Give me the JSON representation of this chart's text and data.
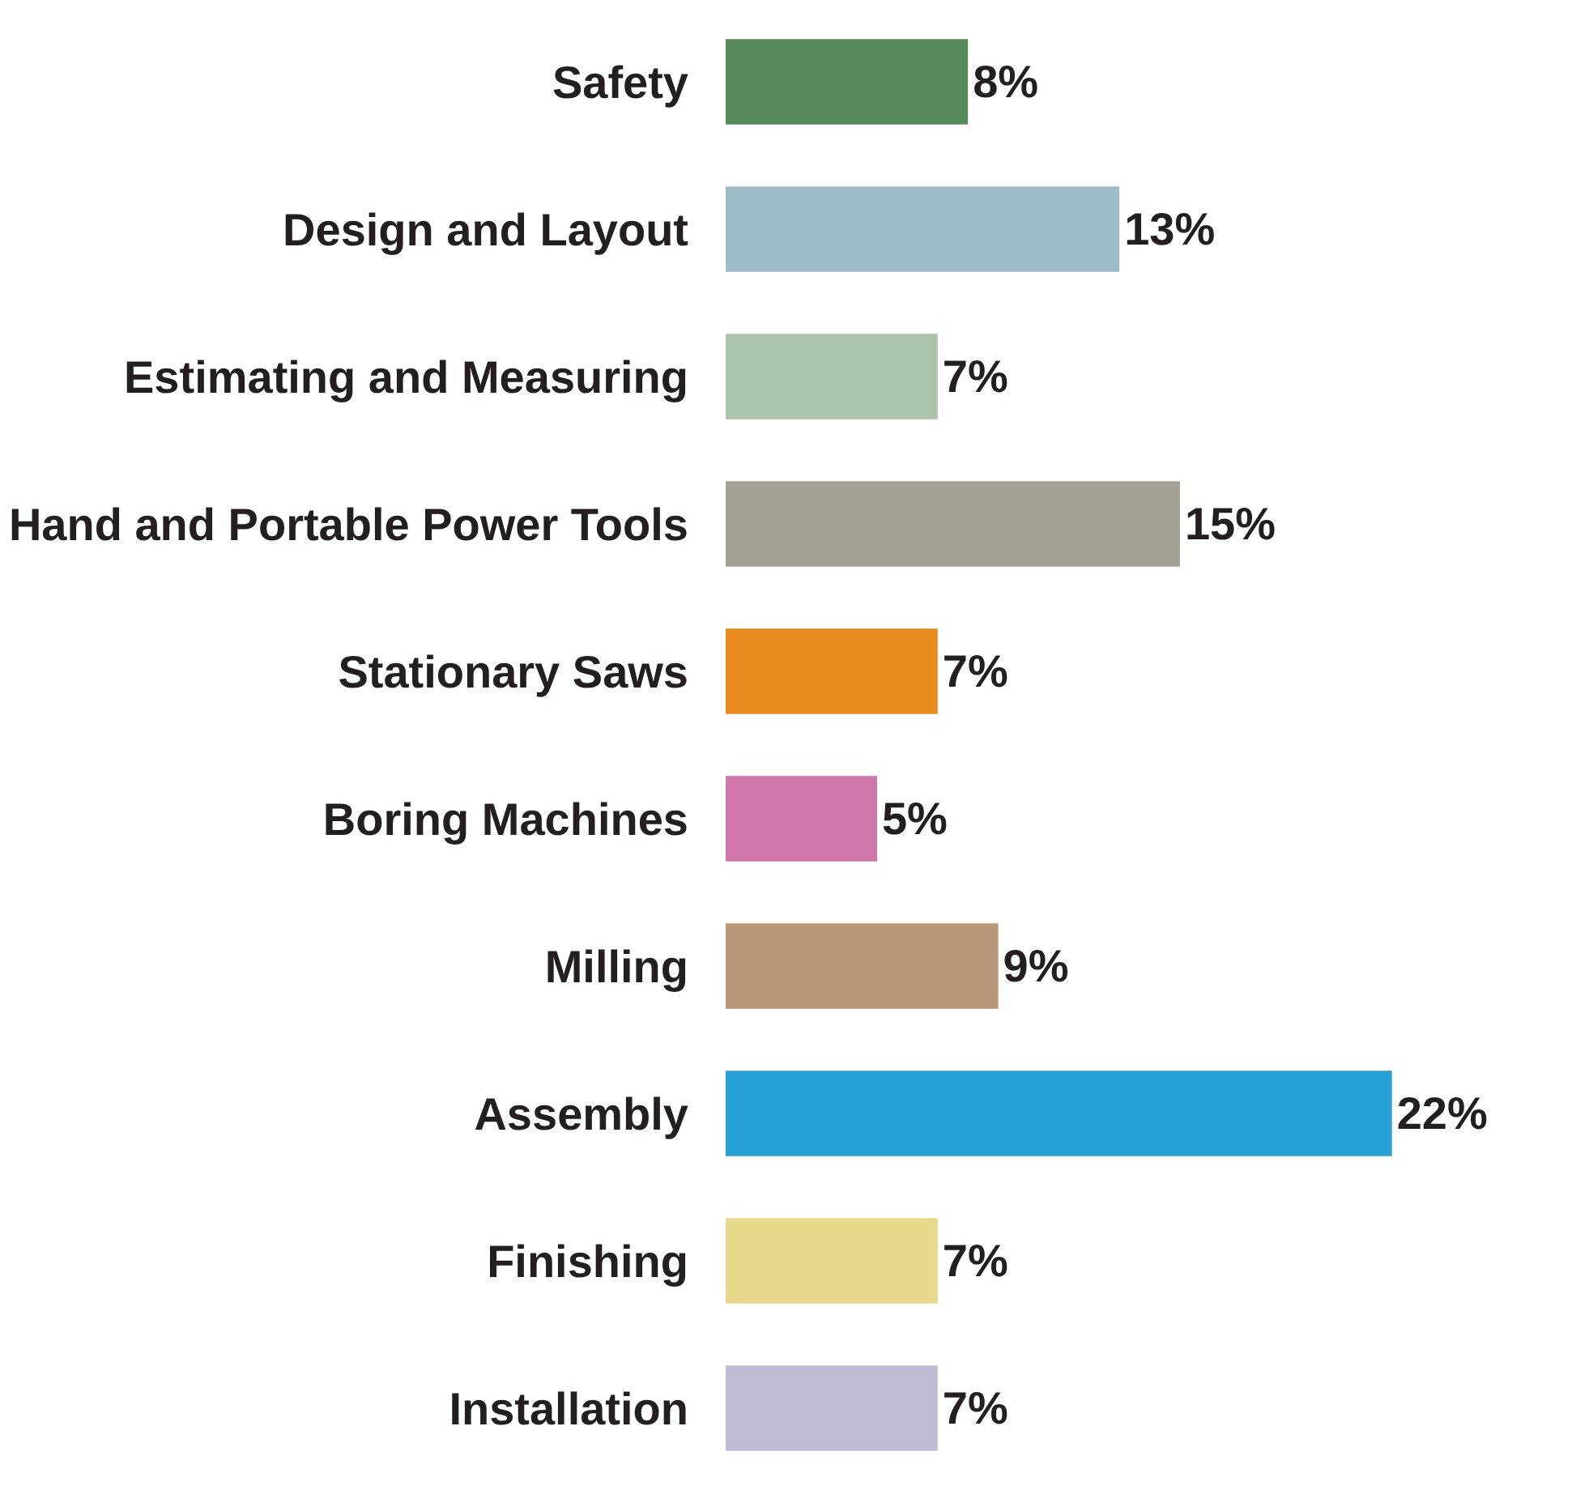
{
  "chart_data": {
    "type": "bar",
    "orientation": "horizontal",
    "categories": [
      "Safety",
      "Design and Layout",
      "Estimating and Measuring",
      "Hand and Portable Power Tools",
      "Stationary Saws",
      "Boring Machines",
      "Milling",
      "Assembly",
      "Finishing",
      "Installation"
    ],
    "values": [
      8,
      13,
      7,
      15,
      7,
      5,
      9,
      22,
      7,
      7
    ],
    "value_labels": [
      "8%",
      "13%",
      "7%",
      "15%",
      "7%",
      "5%",
      "9%",
      "22%",
      "7%",
      "7%"
    ],
    "colors": [
      "#558a5a",
      "#9dbdc6",
      "#a9c4a8",
      "#a3a194",
      "#e88a1e",
      "#d176a8",
      "#b89878",
      "#27a0d3",
      "#e6d98b",
      "#c0bcd6"
    ],
    "tick_labels": "y"
  }
}
